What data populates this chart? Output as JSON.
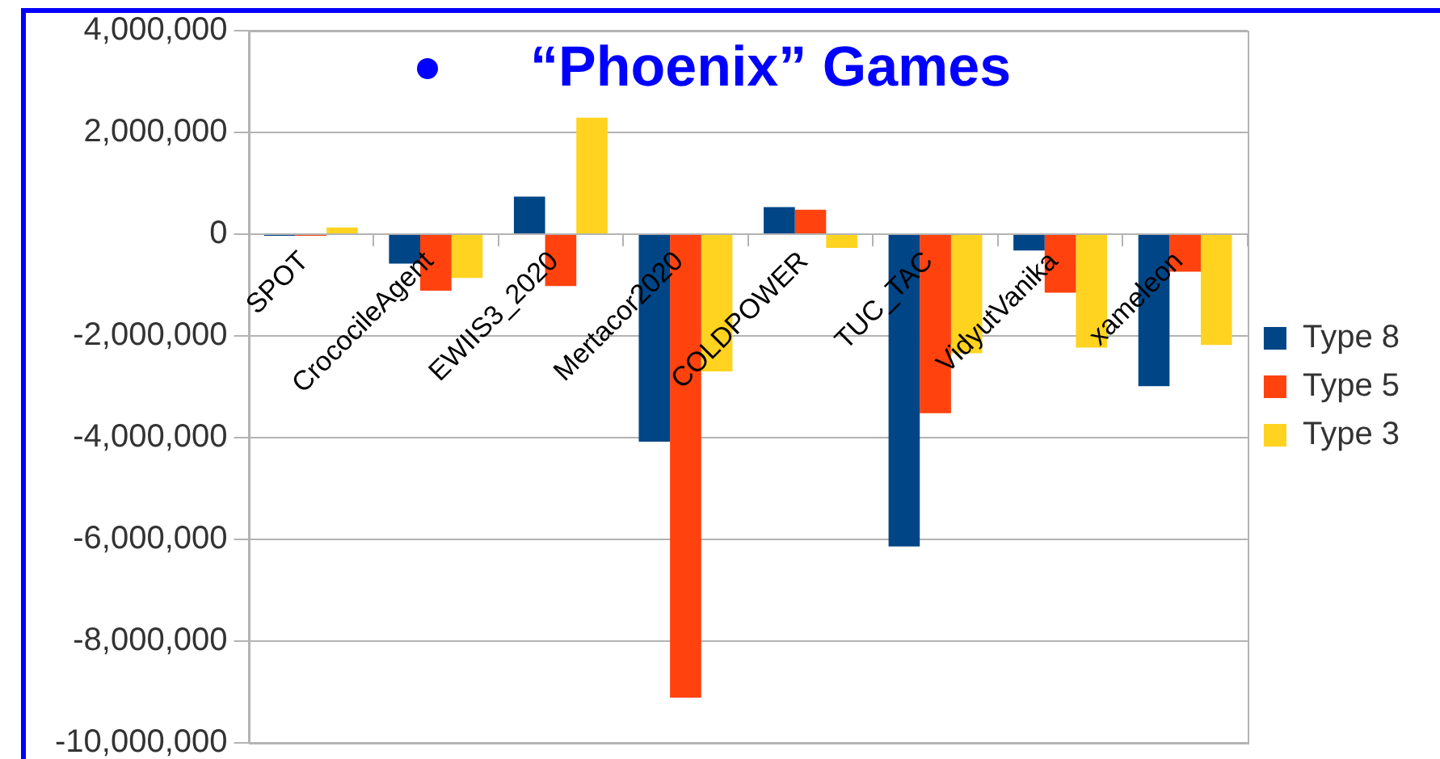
{
  "chart_data": {
    "type": "bar",
    "title": "“Phoenix” Games",
    "categories": [
      "SPOT",
      "CrococileAgent",
      "EWIIS3_2020",
      "Mertacor2020",
      "COLDPOWER",
      "TUC_TAC",
      "VidyutVanika",
      "xameleon"
    ],
    "series": [
      {
        "name": "Type 8",
        "color": "#004586",
        "values": [
          -30000,
          -580000,
          740000,
          -4080000,
          530000,
          -6140000,
          -320000,
          -2990000
        ]
      },
      {
        "name": "Type 5",
        "color": "#ff420e",
        "values": [
          -30000,
          -1110000,
          -1020000,
          -9110000,
          480000,
          -3520000,
          -1150000,
          -740000
        ]
      },
      {
        "name": "Type 3",
        "color": "#ffd320",
        "values": [
          130000,
          -860000,
          2290000,
          -2700000,
          -270000,
          -2340000,
          -2230000,
          -2180000
        ]
      }
    ],
    "ylim": [
      -10000000,
      4000000
    ],
    "yticks": [
      {
        "value": -10000000,
        "label": "-10,000,000"
      },
      {
        "value": -8000000,
        "label": "-8,000,000"
      },
      {
        "value": -6000000,
        "label": "-6,000,000"
      },
      {
        "value": -4000000,
        "label": "-4,000,000"
      },
      {
        "value": -2000000,
        "label": "-2,000,000"
      },
      {
        "value": 0,
        "label": "0"
      },
      {
        "value": 2000000,
        "label": "2,000,000"
      },
      {
        "value": 4000000,
        "label": "4,000,000"
      }
    ],
    "grid": "y",
    "legend": "right"
  }
}
